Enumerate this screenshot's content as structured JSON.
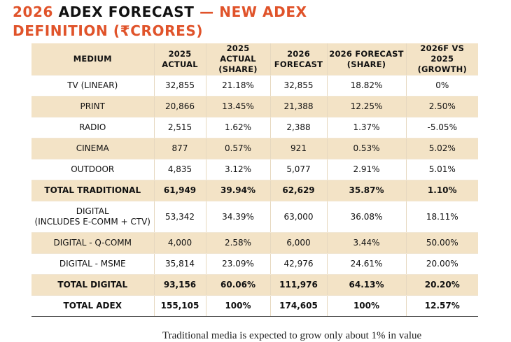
{
  "title": {
    "part1": "2026 ",
    "part2": "ADEX FORECAST",
    "part3": " — NEW ADEX",
    "line2": "DEFINITION (₹CRORES)"
  },
  "table": {
    "headers": [
      "MEDIUM",
      "2025\nACTUAL",
      "2025 ACTUAL\n(SHARE)",
      "2026\nFORECAST",
      "2026 FORECAST\n(SHARE)",
      "2026F VS 2025\n(GROWTH)"
    ],
    "rows": [
      {
        "cells": [
          "TV (LINEAR)",
          "32,855",
          "21.18%",
          "32,855",
          "18.82%",
          "0%"
        ]
      },
      {
        "cells": [
          "PRINT",
          "20,866",
          "13.45%",
          "21,388",
          "12.25%",
          "2.50%"
        ]
      },
      {
        "cells": [
          "RADIO",
          "2,515",
          "1.62%",
          "2,388",
          "1.37%",
          "-5.05%"
        ]
      },
      {
        "cells": [
          "CINEMA",
          "877",
          "0.57%",
          "921",
          "0.53%",
          "5.02%"
        ]
      },
      {
        "cells": [
          "OUTDOOR",
          "4,835",
          "3.12%",
          "5,077",
          "2.91%",
          "5.01%"
        ]
      },
      {
        "cells": [
          "TOTAL TRADITIONAL",
          "61,949",
          "39.94%",
          "62,629",
          "35.87%",
          "1.10%"
        ]
      },
      {
        "cells": [
          "DIGITAL\n(INCLUDES E-COMM + CTV)",
          "53,342",
          "34.39%",
          "63,000",
          "36.08%",
          "18.11%"
        ]
      },
      {
        "cells": [
          "DIGITAL - Q-COMM",
          "4,000",
          "2.58%",
          "6,000",
          "3.44%",
          "50.00%"
        ]
      },
      {
        "cells": [
          "DIGITAL - MSME",
          "35,814",
          "23.09%",
          "42,976",
          "24.61%",
          "20.00%"
        ]
      },
      {
        "cells": [
          "TOTAL DIGITAL",
          "93,156",
          "60.06%",
          "111,976",
          "64.13%",
          "20.20%"
        ]
      },
      {
        "cells": [
          "TOTAL ADEX",
          "155,105",
          "100%",
          "174,605",
          "100%",
          "12.57%"
        ]
      }
    ]
  },
  "body_text": "Traditional media is expected to grow only about 1% in value"
}
